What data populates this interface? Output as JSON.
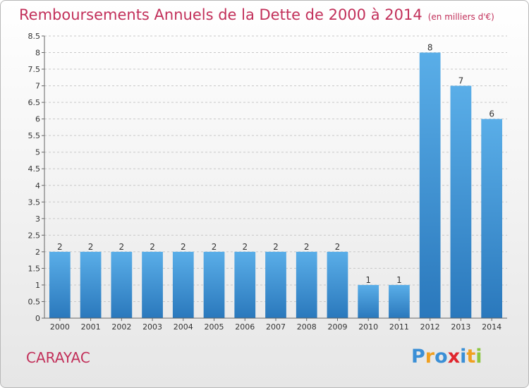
{
  "header": {
    "title": "Remboursements Annuels de la Dette de 2000 à 2014",
    "unit": "(en milliers d'€)"
  },
  "footer": {
    "commune": "CARAYAC",
    "logo_letters": [
      "P",
      "r",
      "o",
      "x",
      "i",
      "t",
      "i"
    ],
    "logo_colors": [
      "#3a8fd6",
      "#f0a020",
      "#3a8fd6",
      "#e0262e",
      "#3a8fd6",
      "#f0a020",
      "#8cc63f"
    ]
  },
  "chart_data": {
    "type": "bar",
    "title": "Remboursements Annuels de la Dette de 2000 à 2014",
    "xlabel": "",
    "ylabel": "",
    "categories": [
      "2000",
      "2001",
      "2002",
      "2003",
      "2004",
      "2005",
      "2006",
      "2007",
      "2008",
      "2009",
      "2010",
      "2011",
      "2012",
      "2013",
      "2014"
    ],
    "values": [
      2,
      2,
      2,
      2,
      2,
      2,
      2,
      2,
      2,
      2,
      1,
      1,
      8,
      7,
      6
    ],
    "data_labels": [
      "2",
      "2",
      "2",
      "2",
      "2",
      "2",
      "2",
      "2",
      "2",
      "2",
      "1",
      "1",
      "8",
      "7",
      "6"
    ],
    "ylim": [
      0,
      8.5
    ],
    "yticks": [
      0,
      0.5,
      1,
      1.5,
      2,
      2.5,
      3,
      3.5,
      4,
      4.5,
      5,
      5.5,
      6,
      6.5,
      7,
      7.5,
      8,
      8.5
    ],
    "ytick_labels": [
      "0",
      "0.5",
      "1",
      "1.5",
      "2",
      "2.5",
      "3",
      "3.5",
      "4",
      "4.5",
      "5",
      "5.5",
      "6",
      "6.5",
      "7",
      "7.5",
      "8",
      "8.5"
    ],
    "grid": true,
    "legend": "none",
    "bar_color_top": "#5aaee8",
    "bar_color_bottom": "#2a78bc"
  }
}
